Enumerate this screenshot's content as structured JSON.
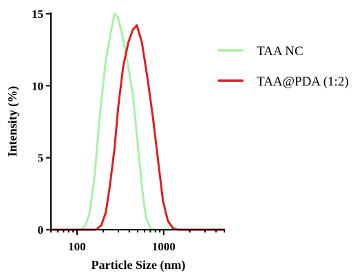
{
  "chart_data": {
    "type": "line",
    "title": "",
    "xlabel": "Particle Size (nm)",
    "ylabel": "Intensity (%)",
    "xscale": "log",
    "xlim": [
      50,
      5000
    ],
    "ylim": [
      0,
      15
    ],
    "xticks": [
      100,
      1000
    ],
    "xtick_labels": [
      "100",
      "1000"
    ],
    "yticks": [
      0,
      5,
      10,
      15
    ],
    "ytick_labels": [
      "0",
      "5",
      "10",
      "15"
    ],
    "grid": false,
    "legend_position": "right",
    "series": [
      {
        "name": "TAA NC",
        "color": "#a6f3a4",
        "x": [
          50,
          90,
          110,
          125,
          140,
          160,
          185,
          215,
          245,
          270,
          295,
          330,
          380,
          440,
          500,
          560,
          620,
          700,
          790,
          1000,
          5000
        ],
        "y": [
          0,
          0,
          0,
          0.3,
          1.2,
          3.8,
          8.2,
          11.8,
          13.7,
          15.0,
          14.8,
          13.6,
          11.7,
          9.4,
          6.0,
          3.0,
          0.9,
          0.1,
          0,
          0,
          0
        ]
      },
      {
        "name": "TAA@PDA (1:2)",
        "color": "#e31a1c",
        "x": [
          50,
          120,
          145,
          165,
          190,
          215,
          240,
          270,
          300,
          340,
          390,
          440,
          490,
          560,
          650,
          750,
          860,
          980,
          1120,
          1280,
          1450,
          5000
        ],
        "y": [
          0,
          0,
          0,
          0,
          0.3,
          1.2,
          3.1,
          5.6,
          8.6,
          11.3,
          13.0,
          13.9,
          14.2,
          13.0,
          10.5,
          7.8,
          4.8,
          2.0,
          0.6,
          0.1,
          0,
          0
        ]
      }
    ]
  }
}
